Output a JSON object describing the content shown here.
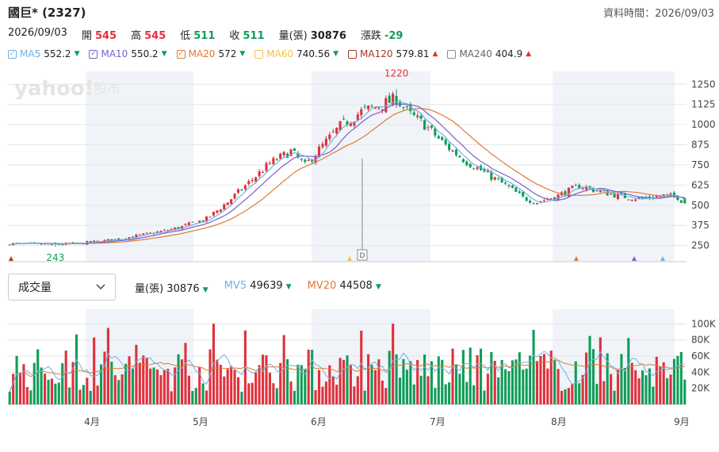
{
  "header": {
    "title": "國巨* (2327)",
    "timestamp": "資料時間：2026/09/03"
  },
  "quote": {
    "date": "2026/09/03",
    "open_label": "開",
    "open": "545",
    "high_label": "高",
    "high": "545",
    "low_label": "低",
    "low": "511",
    "close_label": "收",
    "close": "511",
    "volume_label": "量(張)",
    "volume": "30876",
    "change_label": "漲跌",
    "change": "-29"
  },
  "ma_legend": [
    {
      "label": "MA5",
      "value": "552.2",
      "dir": "down",
      "color": "#6fb1e6",
      "checked": true
    },
    {
      "label": "MA10",
      "value": "550.2",
      "dir": "down",
      "color": "#7b61c9",
      "checked": true
    },
    {
      "label": "MA20",
      "value": "572",
      "dir": "down",
      "color": "#e07a34",
      "checked": true
    },
    {
      "label": "MA60",
      "value": "740.56",
      "dir": "down",
      "color": "#f1c24b",
      "checked": false
    },
    {
      "label": "MA120",
      "value": "579.81",
      "dir": "up",
      "color": "#a33b2a",
      "checked": false
    },
    {
      "label": "MA240",
      "value": "404.9",
      "dir": "up",
      "color": "#888888",
      "checked": false
    }
  ],
  "watermark": {
    "brand": "yahoo!",
    "section": "股市"
  },
  "volume_panel": {
    "selector": "成交量",
    "vol_label": "量(張)",
    "vol_value": "30876",
    "vol_dir": "down",
    "mv5_label": "MV5",
    "mv5_value": "49639",
    "mv5_dir": "down",
    "mv20_label": "MV20",
    "mv20_value": "44508",
    "mv20_dir": "down"
  },
  "colors": {
    "up": "#e0313b",
    "down": "#0f9d58",
    "shade": "#f0f4f9",
    "grid": "#e6e6e6"
  },
  "chart_data": [
    {
      "type": "candlestick",
      "yaxis_ticks": [
        250,
        375,
        500,
        625,
        750,
        875,
        1000,
        1125,
        1250
      ],
      "ylim": [
        150,
        1330
      ],
      "annotations": [
        {
          "text": "1220",
          "value": 1220,
          "kind": "max"
        },
        {
          "text": "243",
          "value": 243,
          "kind": "min"
        }
      ],
      "event_marker": "D",
      "candles": [],
      "ma5": [],
      "ma10": [],
      "ma20": []
    },
    {
      "type": "bar",
      "yaxis_ticks": [
        "20K",
        "40K",
        "60K",
        "80K",
        "100K"
      ],
      "ytick_values": [
        20000,
        40000,
        60000,
        80000,
        100000
      ],
      "ylim": [
        0,
        118000
      ],
      "xtick_labels": [
        "4月",
        "5月",
        "6月",
        "7月",
        "8月",
        "9月"
      ],
      "volumes": [],
      "mv5": [],
      "mv20": []
    }
  ]
}
